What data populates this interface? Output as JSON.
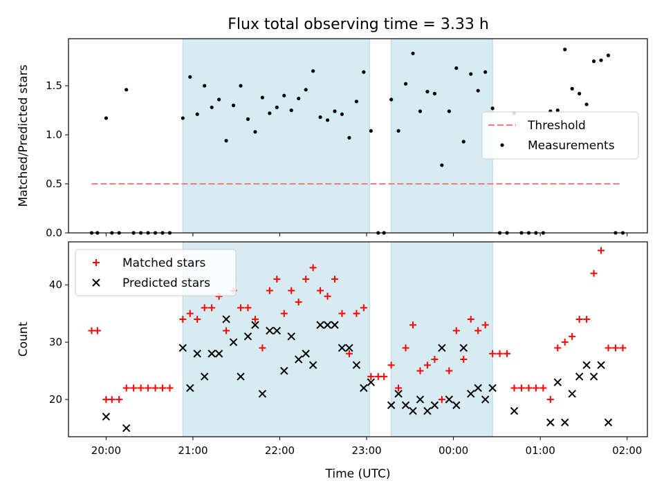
{
  "chart_data": [
    {
      "type": "scatter",
      "title": "Flux total observing time = 3.33 h",
      "ylabel": "Matched/Predicted stars",
      "xlabel": "",
      "xlim": [
        "19:34",
        "02:14"
      ],
      "ylim": [
        0,
        1.98
      ],
      "yticks": [
        0.0,
        0.5,
        1.0,
        1.5
      ],
      "ytick_labels": [
        "0.0",
        "0.5",
        "1.0",
        "1.5"
      ],
      "grid": false,
      "legend_position": "right",
      "shaded_intervals": [
        [
          "20:53",
          "23:02"
        ],
        [
          "23:17",
          "00:27"
        ]
      ],
      "threshold": {
        "name": "Threshold",
        "value": 0.5,
        "x_range": [
          "19:50",
          "01:55"
        ],
        "color": "#f08080"
      },
      "series": [
        {
          "name": "Measurements",
          "color": "#000000",
          "points": [
            [
              "19:50",
              0
            ],
            [
              "19:54",
              0
            ],
            [
              "20:00",
              1.17
            ],
            [
              "20:04",
              0
            ],
            [
              "20:09",
              0
            ],
            [
              "20:14",
              1.46
            ],
            [
              "20:19",
              0
            ],
            [
              "20:24",
              0
            ],
            [
              "20:29",
              0
            ],
            [
              "20:34",
              0
            ],
            [
              "20:39",
              0
            ],
            [
              "20:44",
              0
            ],
            [
              "20:53",
              1.17
            ],
            [
              "20:58",
              1.59
            ],
            [
              "21:03",
              1.21
            ],
            [
              "21:08",
              1.5
            ],
            [
              "21:13",
              1.28
            ],
            [
              "21:18",
              1.36
            ],
            [
              "21:23",
              0.94
            ],
            [
              "21:28",
              1.3
            ],
            [
              "21:33",
              1.5
            ],
            [
              "21:38",
              1.16
            ],
            [
              "21:43",
              1.03
            ],
            [
              "21:48",
              1.38
            ],
            [
              "21:53",
              1.22
            ],
            [
              "21:58",
              1.28
            ],
            [
              "22:03",
              1.4
            ],
            [
              "22:08",
              1.25
            ],
            [
              "22:13",
              1.37
            ],
            [
              "22:18",
              1.46
            ],
            [
              "22:23",
              1.65
            ],
            [
              "22:28",
              1.18
            ],
            [
              "22:33",
              1.15
            ],
            [
              "22:38",
              1.24
            ],
            [
              "22:43",
              1.21
            ],
            [
              "22:48",
              0.97
            ],
            [
              "22:53",
              1.34
            ],
            [
              "22:58",
              1.64
            ],
            [
              "23:03",
              1.04
            ],
            [
              "23:08",
              0
            ],
            [
              "23:12",
              0
            ],
            [
              "23:17",
              1.36
            ],
            [
              "23:22",
              1.04
            ],
            [
              "23:27",
              1.52
            ],
            [
              "23:32",
              1.83
            ],
            [
              "23:37",
              1.24
            ],
            [
              "23:42",
              1.44
            ],
            [
              "23:47",
              1.42
            ],
            [
              "23:52",
              0.69
            ],
            [
              "23:57",
              1.24
            ],
            [
              "00:02",
              1.68
            ],
            [
              "00:07",
              0.93
            ],
            [
              "00:12",
              1.62
            ],
            [
              "00:17",
              1.45
            ],
            [
              "00:22",
              1.64
            ],
            [
              "00:27",
              1.27
            ],
            [
              "00:32",
              0
            ],
            [
              "00:37",
              0
            ],
            [
              "00:42",
              1.22
            ],
            [
              "00:47",
              0
            ],
            [
              "00:52",
              0
            ],
            [
              "00:57",
              0
            ],
            [
              "01:02",
              0
            ],
            [
              "01:07",
              1.24
            ],
            [
              "01:12",
              1.25
            ],
            [
              "01:17",
              1.87
            ],
            [
              "01:22",
              1.47
            ],
            [
              "01:27",
              1.42
            ],
            [
              "01:32",
              1.31
            ],
            [
              "01:37",
              1.75
            ],
            [
              "01:42",
              1.76
            ],
            [
              "01:47",
              1.81
            ],
            [
              "01:52",
              0
            ],
            [
              "01:57",
              0
            ]
          ]
        }
      ]
    },
    {
      "type": "scatter",
      "title": "",
      "ylabel": "Count",
      "xlabel": "Time (UTC)",
      "xlim": [
        "19:34",
        "02:14"
      ],
      "ylim": [
        13.5,
        47.5
      ],
      "yticks": [
        20,
        30,
        40
      ],
      "ytick_labels": [
        "20",
        "30",
        "40"
      ],
      "xticks": [
        "20:00",
        "21:00",
        "22:00",
        "23:00",
        "00:00",
        "01:00",
        "02:00"
      ],
      "grid": false,
      "legend_position": "top-left",
      "shaded_intervals": [
        [
          "20:53",
          "23:02"
        ],
        [
          "23:17",
          "00:27"
        ]
      ],
      "series": [
        {
          "name": "Matched stars",
          "color": "#ff0000",
          "marker": "plus",
          "points": [
            [
              "19:50",
              32
            ],
            [
              "19:54",
              32
            ],
            [
              "20:00",
              20
            ],
            [
              "20:04",
              20
            ],
            [
              "20:09",
              20
            ],
            [
              "20:14",
              22
            ],
            [
              "20:19",
              22
            ],
            [
              "20:24",
              22
            ],
            [
              "20:29",
              22
            ],
            [
              "20:34",
              22
            ],
            [
              "20:39",
              22
            ],
            [
              "20:44",
              22
            ],
            [
              "20:53",
              34
            ],
            [
              "20:58",
              35
            ],
            [
              "21:03",
              34
            ],
            [
              "21:08",
              36
            ],
            [
              "21:13",
              36
            ],
            [
              "21:18",
              38
            ],
            [
              "21:23",
              32
            ],
            [
              "21:28",
              39
            ],
            [
              "21:33",
              36
            ],
            [
              "21:38",
              36
            ],
            [
              "21:43",
              34
            ],
            [
              "21:48",
              29
            ],
            [
              "21:53",
              39
            ],
            [
              "21:58",
              41
            ],
            [
              "22:03",
              35
            ],
            [
              "22:08",
              39
            ],
            [
              "22:13",
              37
            ],
            [
              "22:18",
              41
            ],
            [
              "22:23",
              43
            ],
            [
              "22:28",
              39
            ],
            [
              "22:33",
              38
            ],
            [
              "22:38",
              41
            ],
            [
              "22:43",
              35
            ],
            [
              "22:48",
              28
            ],
            [
              "22:53",
              35
            ],
            [
              "22:58",
              36
            ],
            [
              "23:03",
              24
            ],
            [
              "23:08",
              24
            ],
            [
              "23:12",
              24
            ],
            [
              "23:17",
              26
            ],
            [
              "23:22",
              22
            ],
            [
              "23:27",
              29
            ],
            [
              "23:32",
              33
            ],
            [
              "23:37",
              25
            ],
            [
              "23:42",
              26
            ],
            [
              "23:47",
              27
            ],
            [
              "23:52",
              20
            ],
            [
              "23:57",
              25
            ],
            [
              "00:02",
              32
            ],
            [
              "00:07",
              27
            ],
            [
              "00:12",
              34
            ],
            [
              "00:17",
              32
            ],
            [
              "00:22",
              33
            ],
            [
              "00:27",
              28
            ],
            [
              "00:32",
              28
            ],
            [
              "00:37",
              28
            ],
            [
              "00:42",
              22
            ],
            [
              "00:47",
              22
            ],
            [
              "00:52",
              22
            ],
            [
              "00:57",
              22
            ],
            [
              "01:02",
              22
            ],
            [
              "01:07",
              20
            ],
            [
              "01:12",
              29
            ],
            [
              "01:17",
              30
            ],
            [
              "01:22",
              31
            ],
            [
              "01:27",
              34
            ],
            [
              "01:32",
              34
            ],
            [
              "01:37",
              42
            ],
            [
              "01:42",
              46
            ],
            [
              "01:47",
              29
            ],
            [
              "01:52",
              29
            ],
            [
              "01:57",
              29
            ]
          ]
        },
        {
          "name": "Predicted stars",
          "color": "#000000",
          "marker": "x",
          "points": [
            [
              "20:00",
              17
            ],
            [
              "20:14",
              15
            ],
            [
              "20:53",
              29
            ],
            [
              "20:58",
              22
            ],
            [
              "21:03",
              28
            ],
            [
              "21:08",
              24
            ],
            [
              "21:13",
              28
            ],
            [
              "21:18",
              28
            ],
            [
              "21:23",
              34
            ],
            [
              "21:28",
              30
            ],
            [
              "21:33",
              24
            ],
            [
              "21:38",
              31
            ],
            [
              "21:43",
              33
            ],
            [
              "21:48",
              21
            ],
            [
              "21:53",
              32
            ],
            [
              "21:58",
              32
            ],
            [
              "22:03",
              25
            ],
            [
              "22:08",
              31
            ],
            [
              "22:13",
              27
            ],
            [
              "22:18",
              28
            ],
            [
              "22:23",
              26
            ],
            [
              "22:28",
              33
            ],
            [
              "22:33",
              33
            ],
            [
              "22:38",
              33
            ],
            [
              "22:43",
              29
            ],
            [
              "22:48",
              29
            ],
            [
              "22:53",
              26
            ],
            [
              "22:58",
              22
            ],
            [
              "23:03",
              23
            ],
            [
              "23:17",
              19
            ],
            [
              "23:22",
              21
            ],
            [
              "23:27",
              19
            ],
            [
              "23:32",
              18
            ],
            [
              "23:37",
              20
            ],
            [
              "23:42",
              18
            ],
            [
              "23:47",
              19
            ],
            [
              "23:52",
              29
            ],
            [
              "23:57",
              20
            ],
            [
              "00:02",
              19
            ],
            [
              "00:07",
              29
            ],
            [
              "00:12",
              21
            ],
            [
              "00:17",
              22
            ],
            [
              "00:22",
              20
            ],
            [
              "00:27",
              22
            ],
            [
              "00:42",
              18
            ],
            [
              "01:07",
              16
            ],
            [
              "01:12",
              23
            ],
            [
              "01:17",
              16
            ],
            [
              "01:22",
              21
            ],
            [
              "01:27",
              24
            ],
            [
              "01:32",
              26
            ],
            [
              "01:37",
              24
            ],
            [
              "01:42",
              26
            ],
            [
              "01:47",
              16
            ]
          ]
        }
      ]
    }
  ]
}
